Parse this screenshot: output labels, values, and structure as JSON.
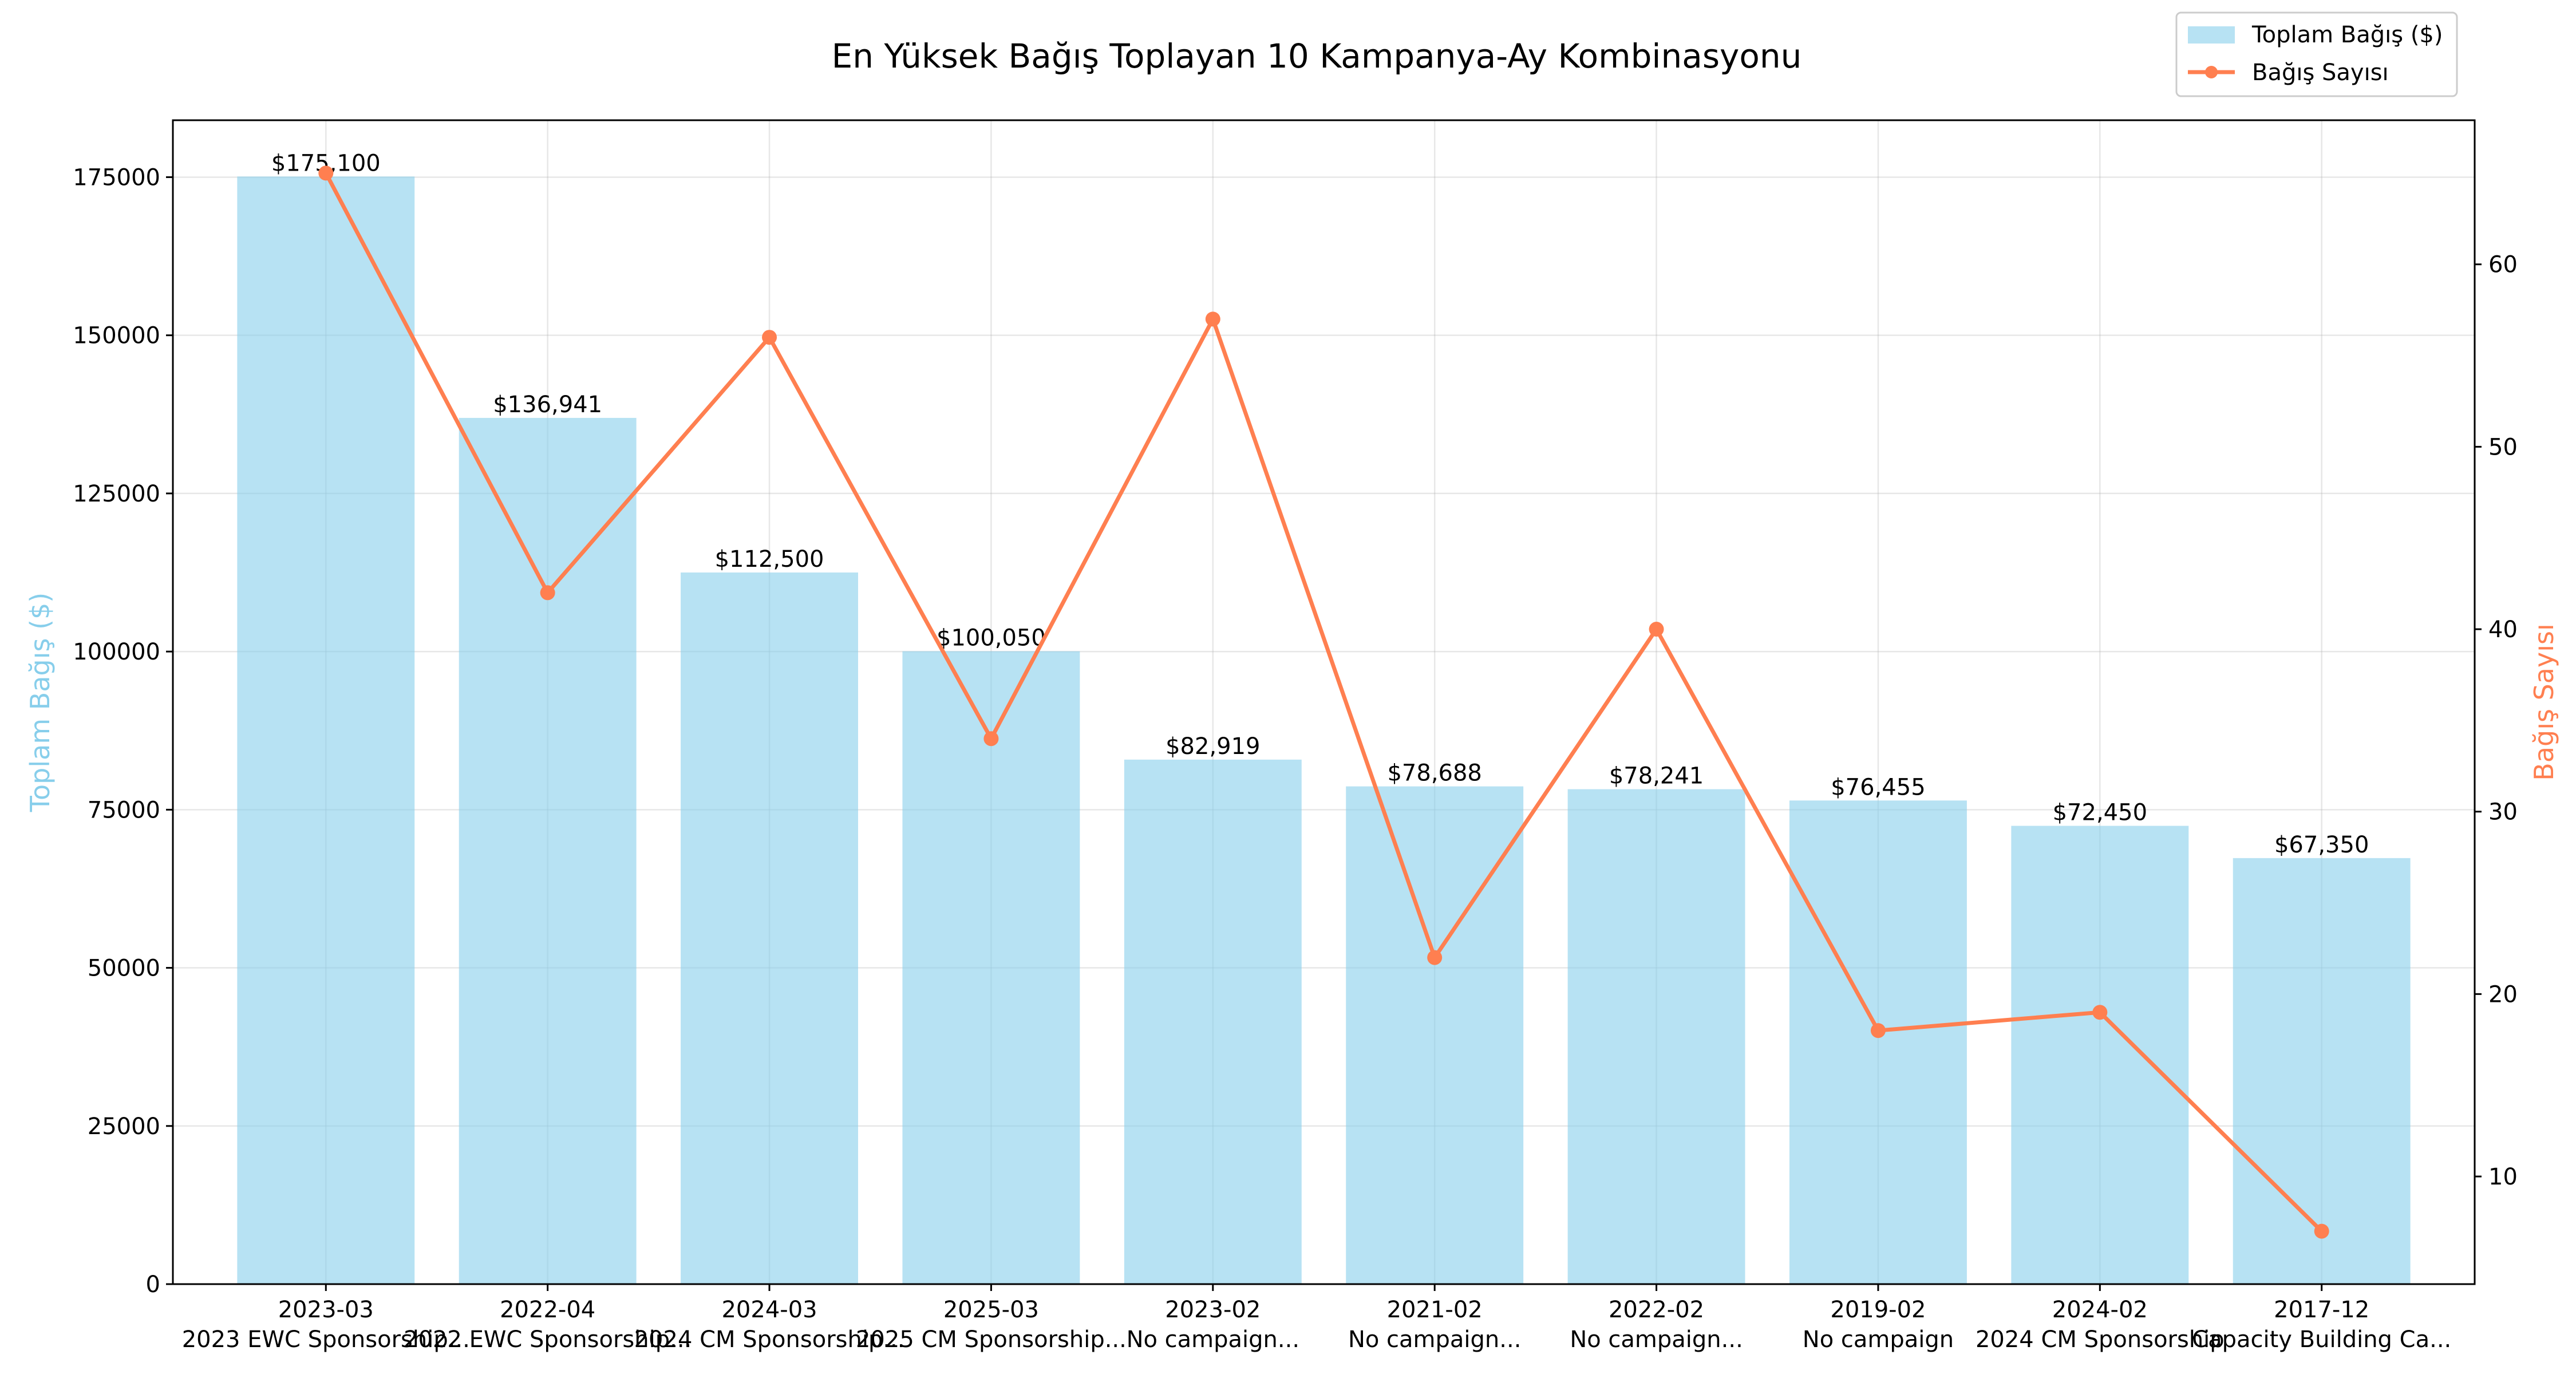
{
  "chart_data": {
    "type": "bar+line",
    "title": "En Yüksek Bağış Toplayan 10 Kampanya-Ay Kombinasyonu",
    "xlabel": "",
    "ylabel_left": "Toplam Bağış ($)",
    "ylabel_right": "Bağış Sayısı",
    "categories": [
      "2023-03",
      "2022-04",
      "2024-03",
      "2025-03",
      "2023-02",
      "2021-02",
      "2022-02",
      "2019-02",
      "2024-02",
      "2017-12"
    ],
    "category_sublabels": [
      "2023 EWC Sponsorship...",
      "2022 EWC Sponsorship...",
      "2024 CM Sponsorship...",
      "2025 CM Sponsorship...",
      "No campaign...",
      "No campaign...",
      "No campaign...",
      "No campaign",
      "2024 CM Sponsorship",
      "Capacity Building Ca..."
    ],
    "series": [
      {
        "name": "Toplam Bağış ($)",
        "type": "bar",
        "axis": "left",
        "color": "#87ceeb",
        "values": [
          175100,
          136941,
          112500,
          100050,
          82919,
          78688,
          78241,
          76455,
          72450,
          67350
        ],
        "labels": [
          "$175,100",
          "$136,941",
          "$112,500",
          "$100,050",
          "$82,919",
          "$78,688",
          "$78,241",
          "$76,455",
          "$72,450",
          "$67,350"
        ]
      },
      {
        "name": "Bağış Sayısı",
        "type": "line",
        "axis": "right",
        "color": "#ff7f50",
        "values": [
          65,
          42,
          56,
          34,
          57,
          22,
          40,
          18,
          19,
          7
        ]
      }
    ],
    "ylim_left": [
      0,
      184000
    ],
    "yticks_left": [
      0,
      25000,
      50000,
      75000,
      100000,
      125000,
      150000,
      175000
    ],
    "ylim_right": [
      4.1,
      67.9
    ],
    "yticks_right": [
      10,
      20,
      30,
      40,
      50,
      60
    ],
    "grid": true,
    "legend_position": "top-right"
  }
}
